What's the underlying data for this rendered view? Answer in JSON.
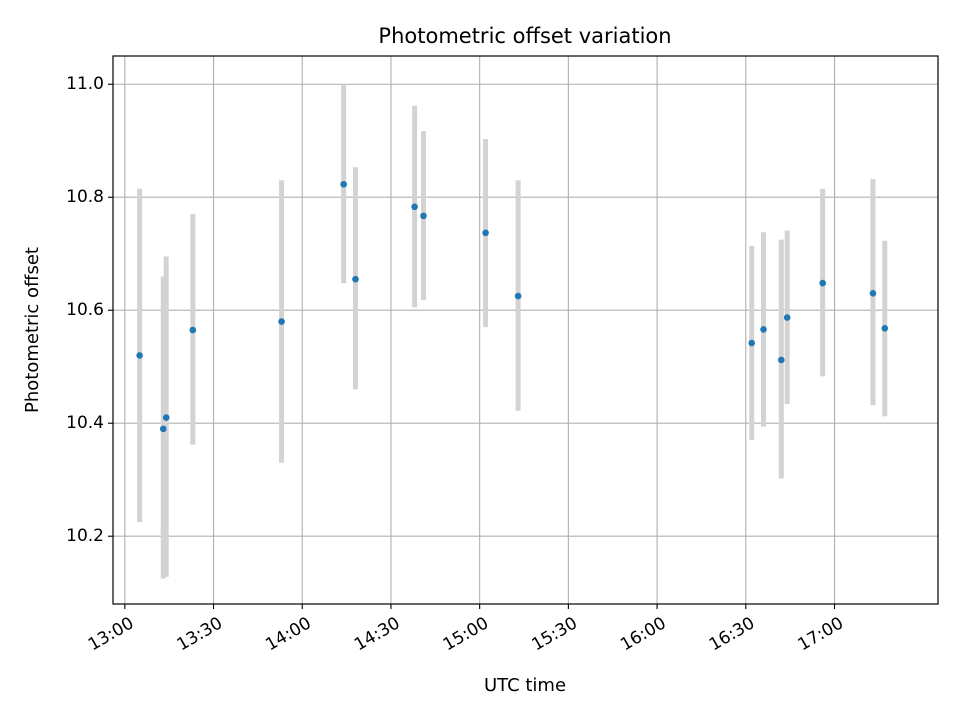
{
  "chart_data": {
    "type": "scatter",
    "title": "Photometric offset variation",
    "xlabel": "UTC time",
    "ylabel": "Photometric offset",
    "grid": true,
    "xlim": [
      "12:56",
      "17:35"
    ],
    "ylim": [
      10.08,
      11.05
    ],
    "x_ticks": [
      "13:00",
      "13:30",
      "14:00",
      "14:30",
      "15:00",
      "15:30",
      "16:00",
      "16:30",
      "17:00"
    ],
    "y_ticks": [
      10.2,
      10.4,
      10.6,
      10.8,
      11.0
    ],
    "y_tick_labels": [
      "10.2",
      "10.4",
      "10.6",
      "10.8",
      "11.0"
    ],
    "point_color": "#1f77b4",
    "errorbar_color": "#d3d3d3",
    "points": [
      {
        "x": "13:05",
        "y": 10.52,
        "ylow": 10.225,
        "yhigh": 10.815
      },
      {
        "x": "13:13",
        "y": 10.39,
        "ylow": 10.125,
        "yhigh": 10.66
      },
      {
        "x": "13:14",
        "y": 10.41,
        "ylow": 10.128,
        "yhigh": 10.695
      },
      {
        "x": "13:23",
        "y": 10.565,
        "ylow": 10.362,
        "yhigh": 10.77
      },
      {
        "x": "13:53",
        "y": 10.58,
        "ylow": 10.33,
        "yhigh": 10.83
      },
      {
        "x": "14:14",
        "y": 10.823,
        "ylow": 10.648,
        "yhigh": 11.0
      },
      {
        "x": "14:18",
        "y": 10.655,
        "ylow": 10.46,
        "yhigh": 10.853
      },
      {
        "x": "14:38",
        "y": 10.783,
        "ylow": 10.605,
        "yhigh": 10.962
      },
      {
        "x": "14:41",
        "y": 10.767,
        "ylow": 10.618,
        "yhigh": 10.917
      },
      {
        "x": "15:02",
        "y": 10.737,
        "ylow": 10.57,
        "yhigh": 10.903
      },
      {
        "x": "15:13",
        "y": 10.625,
        "ylow": 10.422,
        "yhigh": 10.83
      },
      {
        "x": "16:32",
        "y": 10.542,
        "ylow": 10.37,
        "yhigh": 10.714
      },
      {
        "x": "16:36",
        "y": 10.566,
        "ylow": 10.394,
        "yhigh": 10.738
      },
      {
        "x": "16:42",
        "y": 10.512,
        "ylow": 10.302,
        "yhigh": 10.725
      },
      {
        "x": "16:44",
        "y": 10.587,
        "ylow": 10.434,
        "yhigh": 10.741
      },
      {
        "x": "16:56",
        "y": 10.648,
        "ylow": 10.483,
        "yhigh": 10.815
      },
      {
        "x": "17:13",
        "y": 10.63,
        "ylow": 10.432,
        "yhigh": 10.832
      },
      {
        "x": "17:17",
        "y": 10.568,
        "ylow": 10.412,
        "yhigh": 10.723
      }
    ]
  }
}
